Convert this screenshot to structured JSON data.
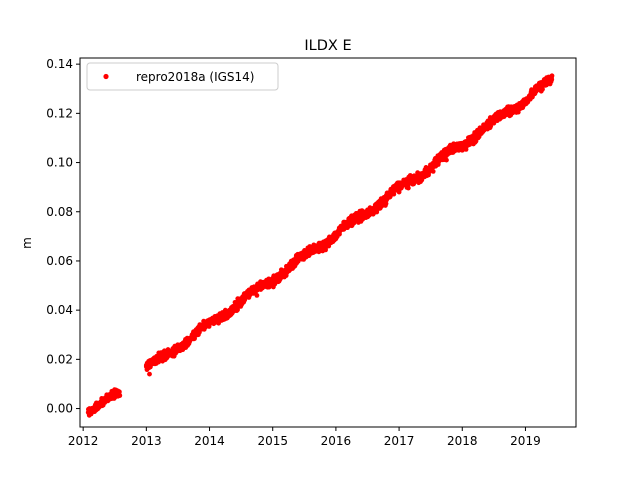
{
  "chart_data": {
    "type": "scatter",
    "title": "ILDX E",
    "xlabel": "",
    "ylabel": "m",
    "xlim": [
      2011.95,
      2019.8
    ],
    "ylim": [
      -0.0075,
      0.1425
    ],
    "xticks": [
      2012,
      2013,
      2014,
      2015,
      2016,
      2017,
      2018,
      2019
    ],
    "xtick_labels": [
      "2012",
      "2013",
      "2014",
      "2015",
      "2016",
      "2017",
      "2018",
      "2019"
    ],
    "yticks": [
      0.0,
      0.02,
      0.04,
      0.06,
      0.08,
      0.1,
      0.12,
      0.14
    ],
    "ytick_labels": [
      "0.00",
      "0.02",
      "0.04",
      "0.06",
      "0.08",
      "0.10",
      "0.12",
      "0.14"
    ],
    "grid": false,
    "legend_position": "upper-left",
    "series": [
      {
        "name": "repro2018a (IGS14)",
        "color": "#ff0000",
        "marker": "circle",
        "segments": [
          {
            "x_start": 2012.08,
            "x_end": 2012.58,
            "y_start": 0.0,
            "y_end": 0.0055,
            "scatter": 0.0012
          },
          {
            "x_start": 2013.0,
            "x_end": 2019.42,
            "y_start": 0.016,
            "y_end": 0.1335,
            "scatter": 0.0013
          }
        ],
        "points": [
          {
            "x": 2012.1,
            "y": 0.0
          },
          {
            "x": 2012.25,
            "y": 0.002
          },
          {
            "x": 2012.4,
            "y": 0.004
          },
          {
            "x": 2012.55,
            "y": 0.005
          },
          {
            "x": 2013.0,
            "y": 0.017
          },
          {
            "x": 2013.05,
            "y": 0.014
          },
          {
            "x": 2013.25,
            "y": 0.022
          },
          {
            "x": 2013.5,
            "y": 0.024
          },
          {
            "x": 2013.75,
            "y": 0.03
          },
          {
            "x": 2014.0,
            "y": 0.035
          },
          {
            "x": 2014.25,
            "y": 0.04
          },
          {
            "x": 2014.5,
            "y": 0.042
          },
          {
            "x": 2014.75,
            "y": 0.046
          },
          {
            "x": 2015.0,
            "y": 0.053
          },
          {
            "x": 2015.25,
            "y": 0.058
          },
          {
            "x": 2015.5,
            "y": 0.062
          },
          {
            "x": 2015.75,
            "y": 0.066
          },
          {
            "x": 2016.0,
            "y": 0.069
          },
          {
            "x": 2016.25,
            "y": 0.075
          },
          {
            "x": 2016.5,
            "y": 0.08
          },
          {
            "x": 2016.75,
            "y": 0.083
          },
          {
            "x": 2017.0,
            "y": 0.088
          },
          {
            "x": 2017.25,
            "y": 0.094
          },
          {
            "x": 2017.5,
            "y": 0.097
          },
          {
            "x": 2017.75,
            "y": 0.101
          },
          {
            "x": 2018.0,
            "y": 0.105
          },
          {
            "x": 2018.25,
            "y": 0.11
          },
          {
            "x": 2018.5,
            "y": 0.116
          },
          {
            "x": 2018.75,
            "y": 0.119
          },
          {
            "x": 2019.0,
            "y": 0.124
          },
          {
            "x": 2019.25,
            "y": 0.129
          },
          {
            "x": 2019.4,
            "y": 0.133
          }
        ]
      }
    ]
  }
}
